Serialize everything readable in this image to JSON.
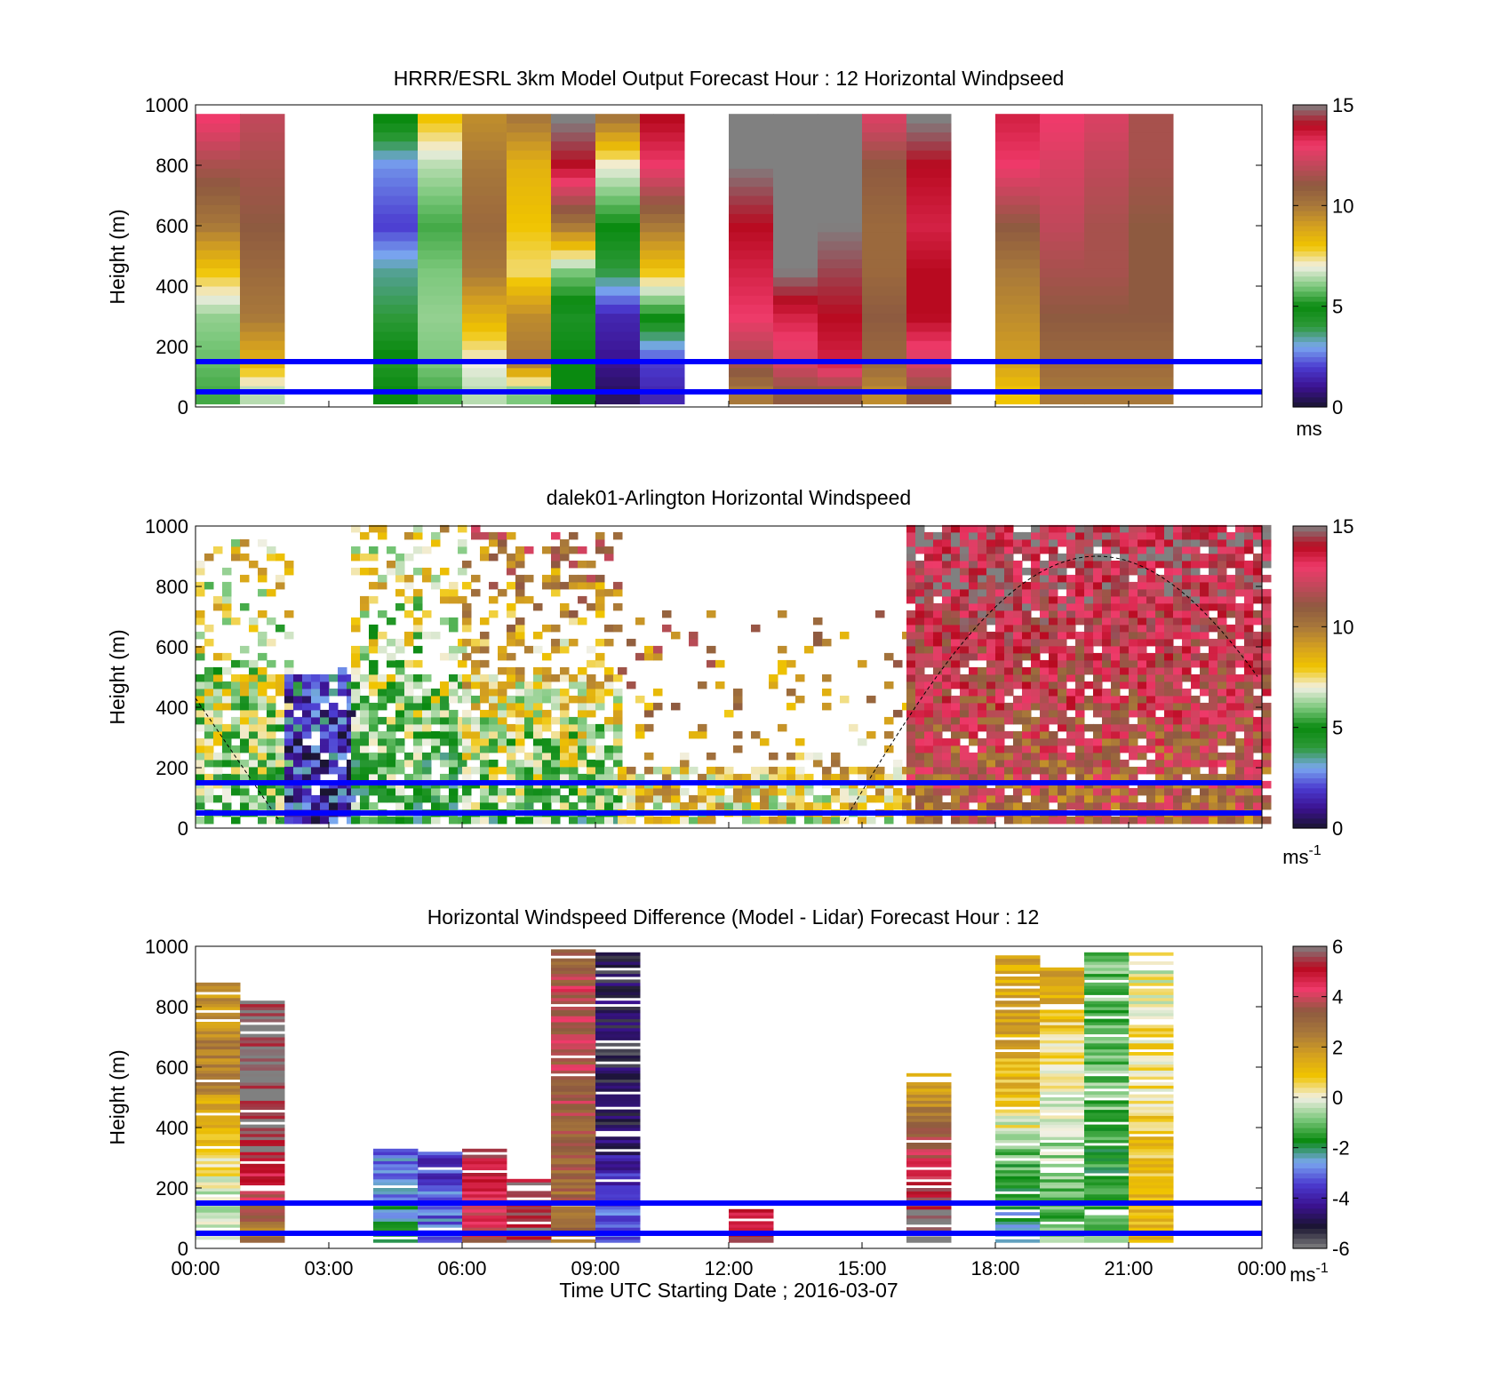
{
  "colors": {
    "scale_speed": [
      "#1a1530",
      "#3b1290",
      "#4b3bd0",
      "#7aa8f0",
      "#2e9a3a",
      "#0a8a10",
      "#7cc87c",
      "#f2f0e4",
      "#f0c400",
      "#d4a020",
      "#a8783a",
      "#8e5a40",
      "#c0485a",
      "#ef3a6a",
      "#b80a20",
      "#808080"
    ],
    "scale_diff": [
      "#808080",
      "#1a1530",
      "#3b1290",
      "#4b3bd0",
      "#7aa8f0",
      "#0a8a10",
      "#7cc87c",
      "#f2f0e4",
      "#f0c400",
      "#d4a020",
      "#a8783a",
      "#8e5a40",
      "#ef3a6a",
      "#b80a20",
      "#808080"
    ],
    "reference_lines": "#0000ff"
  },
  "panels": [
    {
      "title": "HRRR/ESRL 3km Model Output   Forecast Hour : 12 Horizontal Windpseed",
      "ylabel": "Height (m)",
      "yticks": [
        "0",
        "200",
        "400",
        "600",
        "800",
        "1000"
      ],
      "colorbar_ticks": [
        "0",
        "5",
        "10",
        "15"
      ],
      "colorbar_unit": "ms"
    },
    {
      "title": "dalek01-Arlington  Horizontal Windspeed",
      "ylabel": "Height (m)",
      "yticks": [
        "0",
        "200",
        "400",
        "600",
        "800",
        "1000"
      ],
      "colorbar_ticks": [
        "0",
        "5",
        "10",
        "15"
      ],
      "colorbar_unit": "ms",
      "colorbar_unit_sup": "-1"
    },
    {
      "title": "Horizontal Windspeed Difference (Model - Lidar) Forecast Hour : 12",
      "ylabel": "Height (m)",
      "yticks": [
        "0",
        "200",
        "400",
        "600",
        "800",
        "1000"
      ],
      "colorbar_ticks": [
        "-6",
        "-4",
        "-2",
        "0",
        "2",
        "4",
        "6"
      ],
      "colorbar_unit": "ms",
      "colorbar_unit_sup": "-1"
    }
  ],
  "xaxis": {
    "ticks": [
      "00:00",
      "03:00",
      "06:00",
      "09:00",
      "12:00",
      "15:00",
      "18:00",
      "21:00",
      "00:00"
    ],
    "label": "Time UTC  Starting Date ; 2016-03-07"
  },
  "chart_data": [
    {
      "type": "heatmap",
      "title": "HRRR/ESRL 3km Model Output   Forecast Hour : 12 Horizontal Windpseed",
      "ylabel": "Height (m)",
      "ylim": [
        0,
        1000
      ],
      "xlim_hours": [
        0,
        24
      ],
      "clim": [
        0,
        15
      ],
      "hours_with_data": [
        0,
        1,
        4,
        5,
        6,
        7,
        8,
        9,
        10,
        12,
        13,
        14,
        15,
        16,
        18,
        19,
        20,
        21
      ],
      "hourly_profiles": [
        {
          "hour": 0,
          "speed_ms": {
            "50": 5.5,
            "150": 5.8,
            "300": 6.2,
            "450": 8,
            "600": 10,
            "800": 11.5,
            "950": 13
          }
        },
        {
          "hour": 1,
          "speed_ms": {
            "50": 6.5,
            "150": 8.5,
            "300": 10,
            "450": 10.5,
            "600": 11,
            "800": 11.5,
            "950": 12
          }
        },
        {
          "hour": 4,
          "speed_ms": {
            "50": 5,
            "150": 5.2,
            "300": 4,
            "450": 3.5,
            "600": 2,
            "800": 2.8,
            "950": 5
          }
        },
        {
          "hour": 5,
          "speed_ms": {
            "50": 5.5,
            "150": 6,
            "300": 6.2,
            "450": 6,
            "600": 5.5,
            "800": 6.5,
            "950": 8
          }
        },
        {
          "hour": 6,
          "speed_ms": {
            "50": 6.5,
            "150": 7,
            "300": 8.5,
            "450": 10,
            "600": 10.5,
            "800": 10,
            "950": 9.5
          }
        },
        {
          "hour": 7,
          "speed_ms": {
            "50": 6,
            "150": 10,
            "300": 9.5,
            "450": 7.5,
            "600": 8,
            "800": 8.5,
            "950": 10
          }
        },
        {
          "hour": 8,
          "speed_ms": {
            "50": 5,
            "150": 5,
            "300": 4.5,
            "450": 6,
            "600": 10,
            "800": 14,
            "950": 15
          }
        },
        {
          "hour": 9,
          "speed_ms": {
            "50": 0.5,
            "150": 1,
            "300": 1.5,
            "450": 4,
            "600": 5,
            "800": 7,
            "950": 10
          }
        },
        {
          "hour": 10,
          "speed_ms": {
            "50": 1.5,
            "150": 2,
            "300": 5,
            "450": 8,
            "600": 10,
            "800": 13,
            "950": 14
          }
        },
        {
          "hour": 12,
          "speed_ms": {
            "50": 10,
            "150": 11.5,
            "300": 13,
            "450": 13.5,
            "600": 14,
            "800": 15,
            "950": 15
          }
        },
        {
          "hour": 13,
          "speed_ms": {
            "50": 11,
            "150": 12.5,
            "300": 13.5,
            "450": 15,
            "600": 15,
            "800": 15,
            "950": 15
          }
        },
        {
          "hour": 14,
          "speed_ms": {
            "50": 11,
            "150": 13.5,
            "300": 14,
            "450": 14.5,
            "600": 15,
            "800": 15,
            "950": 15
          }
        },
        {
          "hour": 15,
          "speed_ms": {
            "50": 9.5,
            "150": 10.5,
            "300": 11,
            "450": 10.5,
            "600": 10.5,
            "800": 11,
            "950": 12.5
          }
        },
        {
          "hour": 16,
          "speed_ms": {
            "50": 11,
            "150": 12.5,
            "300": 14,
            "450": 14,
            "600": 13.5,
            "800": 14,
            "950": 15
          }
        },
        {
          "hour": 18,
          "speed_ms": {
            "50": 8,
            "150": 9,
            "300": 9.5,
            "450": 10,
            "600": 11,
            "800": 13,
            "950": 13.5
          }
        },
        {
          "hour": 19,
          "speed_ms": {
            "50": 10,
            "150": 10.5,
            "300": 11,
            "450": 11.5,
            "600": 12,
            "800": 12.5,
            "950": 13
          }
        },
        {
          "hour": 20,
          "speed_ms": {
            "50": 10,
            "150": 10.5,
            "300": 11,
            "450": 11.5,
            "600": 11.5,
            "800": 12,
            "950": 12.5
          }
        },
        {
          "hour": 21,
          "speed_ms": {
            "50": 10,
            "150": 10.5,
            "300": 11,
            "450": 11,
            "600": 11,
            "800": 11.5,
            "950": 11.5
          }
        }
      ],
      "reference_lines_m": [
        50,
        150
      ]
    },
    {
      "type": "heatmap",
      "title": "dalek01-Arlington  Horizontal Windspeed",
      "ylabel": "Height (m)",
      "ylim": [
        0,
        1000
      ],
      "xlim_hours": [
        0,
        24
      ],
      "clim": [
        0,
        15
      ],
      "periods": [
        {
          "start_hour": 0,
          "end_hour": 2,
          "speed_ms_low": 4,
          "speed_ms_high": 8,
          "top_m": 950
        },
        {
          "start_hour": 2,
          "end_hour": 3.5,
          "speed_ms_low": 1,
          "speed_ms_high": 2.5,
          "top_m": 520
        },
        {
          "start_hour": 3.5,
          "end_hour": 6,
          "speed_ms_low": 3,
          "speed_ms_high": 8,
          "top_m": 1000
        },
        {
          "start_hour": 6,
          "end_hour": 9.5,
          "speed_ms_low": 2,
          "speed_ms_high": 11,
          "top_m": 1000
        },
        {
          "start_hour": 9.5,
          "end_hour": 16,
          "speed_ms_low": 5,
          "speed_ms_high": 12,
          "top_m": 700
        },
        {
          "start_hour": 16,
          "end_hour": 24,
          "speed_ms_low": 9,
          "speed_ms_high": 14,
          "top_m": 1000
        }
      ],
      "overlay_curve_peak_m": 900,
      "reference_lines_m": [
        50,
        150
      ]
    },
    {
      "type": "heatmap",
      "title": "Horizontal Windspeed Difference (Model - Lidar) Forecast Hour : 12",
      "ylabel": "Height (m)",
      "xlabel": "Time UTC  Starting Date ; 2016-03-07",
      "ylim": [
        0,
        1000
      ],
      "xlim_hours": [
        0,
        24
      ],
      "clim": [
        -6,
        6
      ],
      "hourly_profiles": [
        {
          "hour": 0,
          "diff_ms": {
            "50": 0,
            "150": -0.5,
            "300": 0.5,
            "450": 1.5,
            "600": 2.5,
            "800": 2
          }
        },
        {
          "hour": 1,
          "diff_ms": {
            "50": 2.5,
            "150": 4,
            "250": 5,
            "400": 6,
            "600": 6,
            "750": 6
          }
        },
        {
          "hour": 4,
          "diff_ms": {
            "50": -2,
            "150": -2.5,
            "250": -3
          }
        },
        {
          "hour": 5,
          "diff_ms": {
            "50": -3,
            "150": -3,
            "250": -3.5
          }
        },
        {
          "hour": 6,
          "diff_ms": {
            "50": 4,
            "150": 4.5,
            "250": 5
          }
        },
        {
          "hour": 7,
          "diff_ms": {
            "50": 5.5,
            "150": 5.5
          }
        },
        {
          "hour": 8,
          "diff_ms": {
            "50": 3,
            "150": 3,
            "850": 4,
            "950": 3
          }
        },
        {
          "hour": 9,
          "diff_ms": {
            "50": -3,
            "150": -3,
            "250": -4,
            "450": -5,
            "600": -5,
            "900": -5
          }
        },
        {
          "hour": 12,
          "diff_ms": {
            "50": 5
          }
        },
        {
          "hour": 16,
          "diff_ms": {
            "100": 6,
            "500": 2
          }
        },
        {
          "hour": 18,
          "diff_ms": {
            "50": -2.5,
            "150": -2,
            "300": -1,
            "500": 1,
            "700": 1.5,
            "900": 1.5
          }
        },
        {
          "hour": 19,
          "diff_ms": {
            "50": -1,
            "150": -1,
            "300": -0.5,
            "500": 0,
            "700": 0.5,
            "850": 1.5
          }
        },
        {
          "hour": 20,
          "diff_ms": {
            "50": -1,
            "150": -1.5,
            "300": -1.5,
            "500": -1,
            "700": -1,
            "900": -1
          }
        },
        {
          "hour": 21,
          "diff_ms": {
            "50": 1,
            "150": 1,
            "300": 1,
            "500": 0.5,
            "700": 0.5,
            "900": 0
          }
        }
      ],
      "reference_lines_m": [
        50,
        150
      ]
    }
  ]
}
